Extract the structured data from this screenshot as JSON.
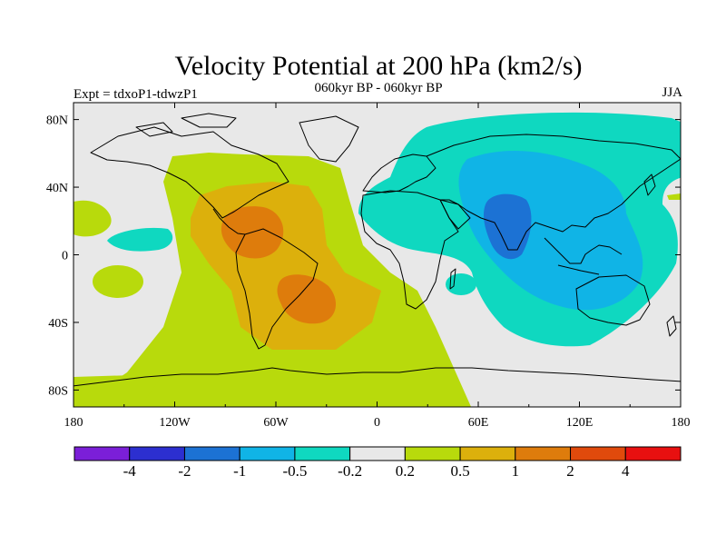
{
  "chart_data": {
    "type": "heatmap",
    "title": "Velocity Potential at 200 hPa (km2/s)",
    "subtitle": "060kyr BP - 060kyr BP",
    "left_label": "Expt = tdxoP1-tdwzP1",
    "right_label": "JJA",
    "x_ticks": [
      "180",
      "120W",
      "60W",
      "0",
      "60E",
      "120E",
      "180"
    ],
    "y_ticks": [
      "80N",
      "40N",
      "0",
      "40S",
      "80S"
    ],
    "xlim": [
      -180,
      180
    ],
    "ylim": [
      -90,
      90
    ],
    "colorbar": {
      "labels": [
        "-4",
        "-2",
        "-1",
        "-0.5",
        "-0.2",
        "0.2",
        "0.5",
        "1",
        "2",
        "4"
      ],
      "colors": [
        "#7b1fd8",
        "#2c2fd0",
        "#1c72d4",
        "#10b4e6",
        "#0fd8c0",
        "#e8e8e8",
        "#b8da0c",
        "#dcb00c",
        "#de7c0c",
        "#e04a0c",
        "#e81010"
      ]
    },
    "regions": [
      {
        "level": "0.2 to 0.5",
        "color": "#b8da0c",
        "area": "Atlantic, Americas and Southern Ocean basin (~100W-40E, 90S-40N)"
      },
      {
        "level": "0.5 to 1",
        "color": "#dcb00c",
        "area": "Central America, Caribbean and South America / South Atlantic"
      },
      {
        "level": "1 to 2",
        "color": "#de7c0c",
        "area": "Caribbean (~80W,15N) and South Atlantic (~45W,25S)"
      },
      {
        "level": "-0.5 to -0.2",
        "color": "#0fd8c0",
        "area": "Eurasia, Indian Ocean and Western Pacific"
      },
      {
        "level": "-1 to -0.5",
        "color": "#10b4e6",
        "area": "Asia, Indian Ocean, Maritime Continent"
      },
      {
        "level": "-2 to -1",
        "color": "#1c72d4",
        "area": "Indian subcontinent / Arabian Sea (~80E,15N)"
      }
    ]
  }
}
